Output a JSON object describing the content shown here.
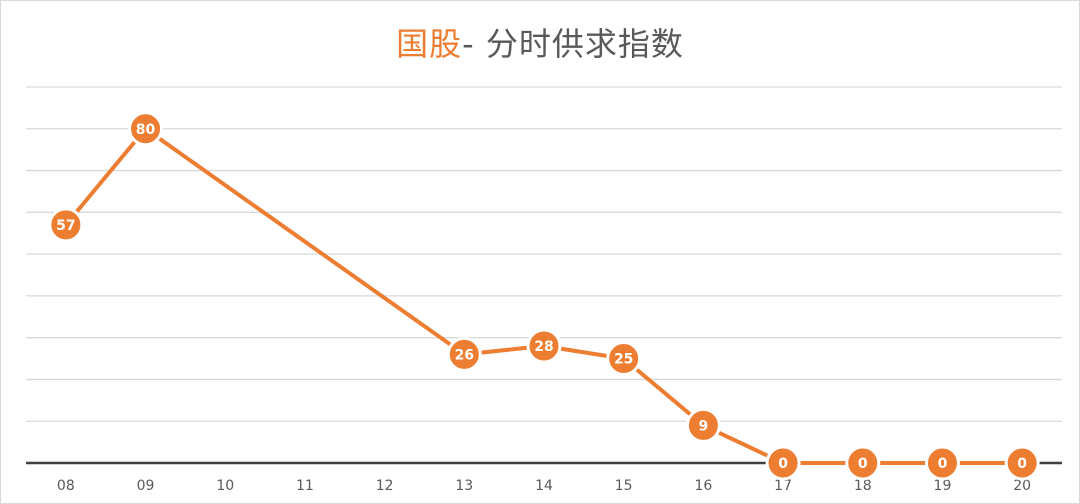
{
  "title": {
    "accent": "国股",
    "rest": "- 分时供求指数"
  },
  "chart_data": {
    "type": "line",
    "categories": [
      "08",
      "09",
      "10",
      "11",
      "12",
      "13",
      "14",
      "15",
      "16",
      "17",
      "18",
      "19",
      "20"
    ],
    "series": [
      {
        "values": [
          57,
          80,
          null,
          null,
          null,
          26,
          28,
          25,
          9,
          0,
          0,
          0,
          0
        ]
      }
    ],
    "ylim": [
      0,
      90
    ],
    "grid": true,
    "legend": "none",
    "colors": {
      "series": "#ed7d31",
      "grid": "#d9d9d9",
      "axis": "#404040",
      "title": "#595959",
      "accent": "#ed7d31"
    }
  }
}
